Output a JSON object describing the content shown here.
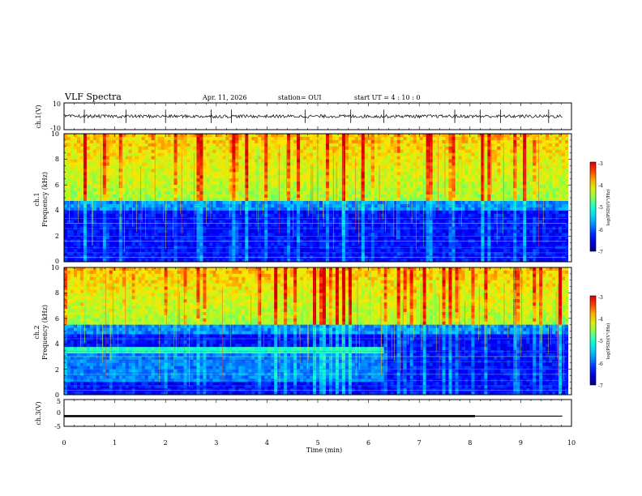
{
  "header": {
    "title": "VLF Spectra",
    "date": "Apr. 11, 2026",
    "station": "station= OUI",
    "start_ut": "start  UT =   4 : 10 : 0"
  },
  "chart_data": [
    {
      "type": "line",
      "panel": "ch1-waveform",
      "ylabel": "ch.1(V)",
      "ylim": [
        -10,
        10
      ],
      "yticks": [
        "10",
        "-10"
      ],
      "baseline_value": 0,
      "spike_times_min": [
        0.4,
        1.22,
        2.0,
        2.9,
        3.3,
        4.75,
        5.65,
        6.3,
        7.7,
        8.2,
        8.6,
        9.55
      ]
    },
    {
      "type": "heatmap",
      "panel": "ch1-spectrogram",
      "ylabel_top": "ch.1",
      "ylabel": "Frequency  (kHz)",
      "xlim": [
        0,
        10
      ],
      "ylim": [
        0,
        10
      ],
      "yticks": [
        "0",
        "2",
        "4",
        "6",
        "8",
        "10"
      ],
      "cutoff_khz": 4.7,
      "colorbar": {
        "label": "log(PSD)(V²/Hz)",
        "ticks": [
          "-3",
          "-4",
          "-5",
          "-6",
          "-7"
        ],
        "range": [
          -7,
          -3
        ]
      }
    },
    {
      "type": "heatmap",
      "panel": "ch2-spectrogram",
      "ylabel_top": "ch.2",
      "ylabel": "Frequency  (kHz)",
      "xlim": [
        0,
        10
      ],
      "ylim": [
        0,
        10
      ],
      "yticks": [
        "0",
        "2",
        "4",
        "6",
        "8",
        "10"
      ],
      "cutoff_khz": 5.4,
      "band_khz": [
        3.2,
        3.7
      ],
      "band_end_min": 6.3,
      "colorbar": {
        "label": "log(PSD)(V²/Hz)",
        "ticks": [
          "-3",
          "-4",
          "-5",
          "-6",
          "-7"
        ],
        "range": [
          -7,
          -3
        ]
      }
    },
    {
      "type": "line",
      "panel": "ch3-level",
      "ylabel": "ch.3(V)",
      "ylim": [
        -5,
        5
      ],
      "yticks": [
        "5",
        "0",
        "-5"
      ],
      "segments": [
        {
          "x": [
            0,
            8.1
          ],
          "y": -1.2
        },
        {
          "x": [
            8.1,
            9.82
          ],
          "y": -1.2
        }
      ],
      "xlabel": "Time  (min)",
      "xlim": [
        0,
        10
      ],
      "xticks": [
        "0",
        "1",
        "2",
        "3",
        "4",
        "5",
        "6",
        "7",
        "8",
        "9",
        "10"
      ]
    }
  ],
  "colors": {
    "spec_low": "#000080",
    "spec_mid": "#00c0d0",
    "spec_high": "#ff2000",
    "axis": "#000000"
  }
}
